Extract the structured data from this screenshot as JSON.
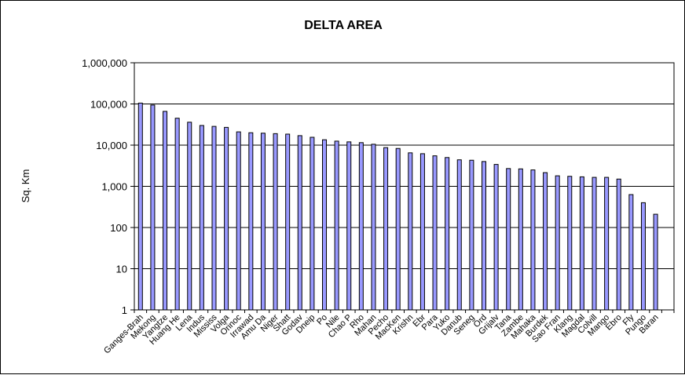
{
  "chart_data": {
    "type": "bar",
    "title": "DELTA AREA",
    "ylabel": "Sq. Km",
    "xlabel": "",
    "yscale": "log",
    "ylim": [
      1,
      1000000
    ],
    "ytick_labels": [
      "1",
      "10",
      "100",
      "1,000",
      "10,000",
      "100,000",
      "1,000,000"
    ],
    "grid": "horizontal major",
    "legend": "none",
    "bar_color": "#9999ff",
    "categories": [
      "Ganges-Brahmaputra",
      "Mekong",
      "Yangtze",
      "Huang He",
      "Lena",
      "Indus",
      "Mississippi",
      "Volga",
      "Orinoco",
      "Irrawaddy",
      "Amu Darya",
      "Niger",
      "Shatt el Arab",
      "Godavari",
      "Dneiper",
      "Po",
      "Nile",
      "Chao Phraya",
      "Rhone",
      "Mahanadi",
      "Pechora",
      "Mackenzie",
      "Krishna",
      "Ebro",
      "Parana",
      "Yukon",
      "Danube",
      "Senegal",
      "Ord",
      "Grijalva",
      "Tana",
      "Zambezi",
      "Mahakam",
      "Burdekin",
      "Sao Francisco",
      "Klang",
      "Magdalena",
      "Colville",
      "Mangoky",
      "Ebro",
      "Fly",
      "Pungoe",
      "Baram",
      ""
    ],
    "category_labels_shown": [
      "Ganges-Brah",
      "Mekong",
      "Yangtze",
      "Huang He",
      "Lena",
      "Indus",
      "Mississ",
      "Volga",
      "Orinoc",
      "Irrawad",
      "Amu Da",
      "Niger",
      "Shatt",
      "Godav",
      "Dneip",
      "Po",
      "Nile",
      "Chao P",
      "Rho",
      "Mahan",
      "Pecho",
      "MacKen",
      "Krishn",
      "Ebr",
      "Para",
      "Yuko",
      "Danub",
      "Seneg",
      "Ord",
      "Grijalv",
      "Tana",
      "Zambe",
      "Mahaka",
      "Burdek",
      "Sao Fran",
      "Klang",
      "Magdal",
      "Colvill",
      "Mango",
      "Ebro",
      "Fly",
      "Pungo",
      "Baran",
      ""
    ],
    "values": [
      105000,
      94000,
      66000,
      45000,
      36000,
      30000,
      28500,
      27000,
      21000,
      20000,
      19500,
      19000,
      18500,
      17000,
      15500,
      13500,
      12500,
      12000,
      11500,
      10500,
      8700,
      8300,
      6500,
      6200,
      5500,
      5000,
      4400,
      4300,
      4000,
      3400,
      2700,
      2650,
      2500,
      2150,
      1800,
      1750,
      1700,
      1650,
      1650,
      1500,
      630,
      400,
      210,
      1
    ]
  }
}
